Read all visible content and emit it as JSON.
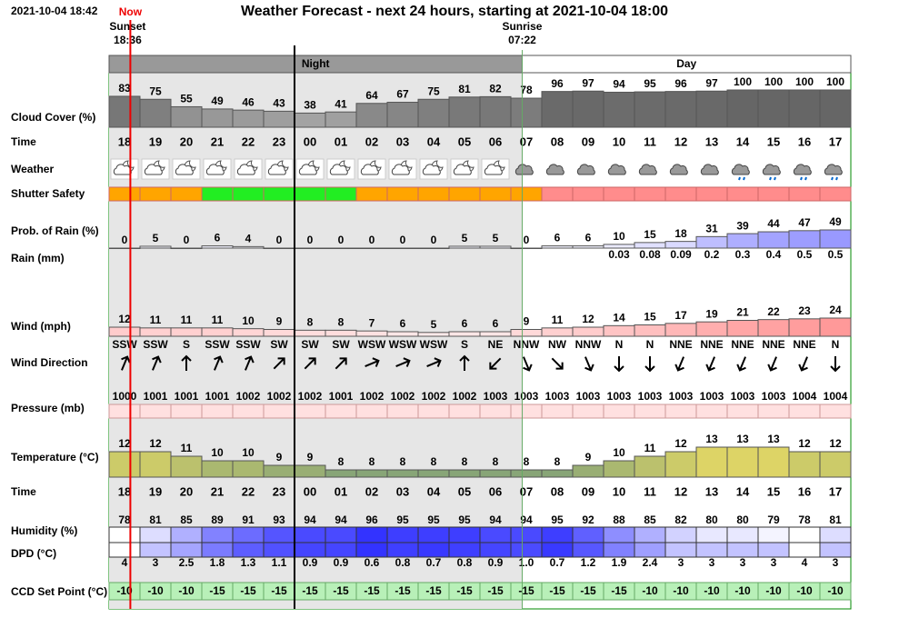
{
  "header": {
    "timestamp": "2021-10-04 18:42",
    "now": "Now",
    "title": "Weather Forecast - next 24 hours, starting at 2021-10-04 18:00",
    "sunset_label": "Sunset",
    "sunset_time": "18:36",
    "sunrise_label": "Sunrise",
    "sunrise_time": "07:22",
    "night": "Night",
    "day": "Day"
  },
  "hours": [
    "18",
    "19",
    "20",
    "21",
    "22",
    "23",
    "00",
    "01",
    "02",
    "03",
    "04",
    "05",
    "06",
    "07",
    "08",
    "09",
    "10",
    "11",
    "12",
    "13",
    "14",
    "15",
    "16",
    "17"
  ],
  "rows": {
    "cloud_cover": {
      "label": "Cloud Cover (%)",
      "values": [
        83,
        75,
        55,
        49,
        46,
        43,
        38,
        41,
        64,
        67,
        75,
        81,
        82,
        78,
        96,
        97,
        94,
        95,
        96,
        97,
        100,
        100,
        100,
        100
      ]
    },
    "time": {
      "label": "Time"
    },
    "weather": {
      "label": "Weather"
    },
    "shutter_safety": {
      "label": "Shutter Safety",
      "colors": [
        "#ffa500",
        "#ffa500",
        "#ffa500",
        "#22ee22",
        "#22ee22",
        "#22ee22",
        "#22ee22",
        "#22ee22",
        "#ffa500",
        "#ffa500",
        "#ffa500",
        "#ffa500",
        "#ffa500",
        "#ffa500",
        "#ff8c8c",
        "#ff8c8c",
        "#ff8c8c",
        "#ff8c8c",
        "#ff8c8c",
        "#ff8c8c",
        "#ff8c8c",
        "#ff8c8c",
        "#ff8c8c",
        "#ff8c8c"
      ]
    },
    "rain_probability": {
      "label": "Prob. of Rain (%)",
      "values": [
        0,
        5,
        0,
        6,
        4,
        0,
        0,
        0,
        0,
        0,
        0,
        5,
        5,
        0,
        6,
        6,
        10,
        15,
        18,
        31,
        39,
        44,
        47,
        49
      ]
    },
    "rain": {
      "label": "Rain (mm)",
      "values": [
        null,
        null,
        null,
        null,
        null,
        null,
        null,
        null,
        null,
        null,
        null,
        null,
        null,
        null,
        null,
        null,
        0.03,
        0.08,
        0.09,
        0.2,
        0.3,
        0.4,
        0.5,
        0.5
      ]
    },
    "wind": {
      "label": "Wind (mph)",
      "values": [
        12,
        11,
        11,
        11,
        10,
        9,
        8,
        8,
        7,
        6,
        5,
        6,
        6,
        9,
        11,
        12,
        14,
        15,
        17,
        19,
        21,
        22,
        23,
        24
      ]
    },
    "wind_direction": {
      "label": "Wind Direction",
      "values": [
        "SSW",
        "SSW",
        "S",
        "SSW",
        "SSW",
        "SW",
        "SW",
        "SW",
        "WSW",
        "WSW",
        "WSW",
        "S",
        "NE",
        "NNW",
        "NW",
        "NNW",
        "N",
        "N",
        "NNE",
        "NNE",
        "NNE",
        "NNE",
        "NNE",
        "N"
      ]
    },
    "pressure": {
      "label": "Pressure (mb)",
      "values": [
        1000,
        1001,
        1001,
        1001,
        1002,
        1002,
        1002,
        1001,
        1002,
        1002,
        1002,
        1002,
        1003,
        1003,
        1003,
        1003,
        1003,
        1003,
        1003,
        1003,
        1003,
        1003,
        1004,
        1004
      ]
    },
    "temperature": {
      "label": "Temperature (°C)",
      "values": [
        12,
        12,
        11,
        10,
        10,
        9,
        9,
        8,
        8,
        8,
        8,
        8,
        8,
        8,
        8,
        9,
        10,
        11,
        12,
        13,
        13,
        13,
        12,
        12
      ]
    },
    "time2": {
      "label": "Time"
    },
    "humidity": {
      "label": "Humidity (%)",
      "values": [
        78,
        81,
        85,
        89,
        91,
        93,
        94,
        94,
        96,
        95,
        95,
        95,
        94,
        94,
        95,
        92,
        88,
        85,
        82,
        80,
        80,
        79,
        78,
        81
      ]
    },
    "dpd": {
      "label": "DPD (°C)",
      "values": [
        4,
        3,
        2.5,
        1.8,
        1.3,
        1.1,
        0.9,
        0.9,
        0.6,
        0.8,
        0.7,
        0.8,
        0.9,
        1.0,
        0.7,
        1.2,
        1.9,
        2.4,
        3,
        3,
        3,
        3,
        4,
        3
      ],
      "value_labels": [
        "4",
        "3",
        "2.5",
        "1.8",
        "1.3",
        "1.1",
        "0.9",
        "0.9",
        "0.6",
        "0.8",
        "0.7",
        "0.8",
        "0.9",
        "1.0",
        "0.7",
        "1.2",
        "1.9",
        "2.4",
        "3",
        "3",
        "3",
        "3",
        "4",
        "3"
      ]
    },
    "ccd_set_point": {
      "label": "CCD Set Point (°C)",
      "values": [
        -10,
        -10,
        -10,
        -15,
        -15,
        -15,
        -15,
        -15,
        -15,
        -15,
        -15,
        -15,
        -15,
        -15,
        -15,
        -15,
        -15,
        -10,
        -10,
        -10,
        -10,
        -10,
        -10,
        -10
      ]
    }
  }
}
